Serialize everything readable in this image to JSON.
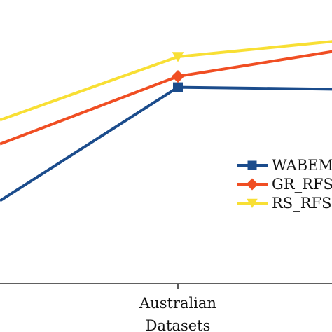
{
  "chart_data": {
    "type": "line",
    "title": "",
    "xlabel": "Datasets",
    "ylabel": "",
    "categories": [
      "",
      "Australian",
      ""
    ],
    "visible_tick_labels": [
      "Australian"
    ],
    "series": [
      {
        "name": "WABEM",
        "values": [
          0.28,
          0.8,
          0.79
        ],
        "color": "#1b4c8c",
        "marker": "square"
      },
      {
        "name": "GR_RFS-",
        "values": [
          0.54,
          0.85,
          0.98
        ],
        "color": "#f04e23",
        "marker": "diamond"
      },
      {
        "name": "RS_RFS-",
        "values": [
          0.65,
          0.94,
          1.02
        ],
        "color": "#f8df34",
        "marker": "triangle-down"
      }
    ],
    "ylim": [
      -0.1,
      1.2
    ],
    "grid": false,
    "legend_position": "right",
    "legend": [
      "WABEM",
      "GR_RFS-",
      "RS_RFS-"
    ]
  }
}
